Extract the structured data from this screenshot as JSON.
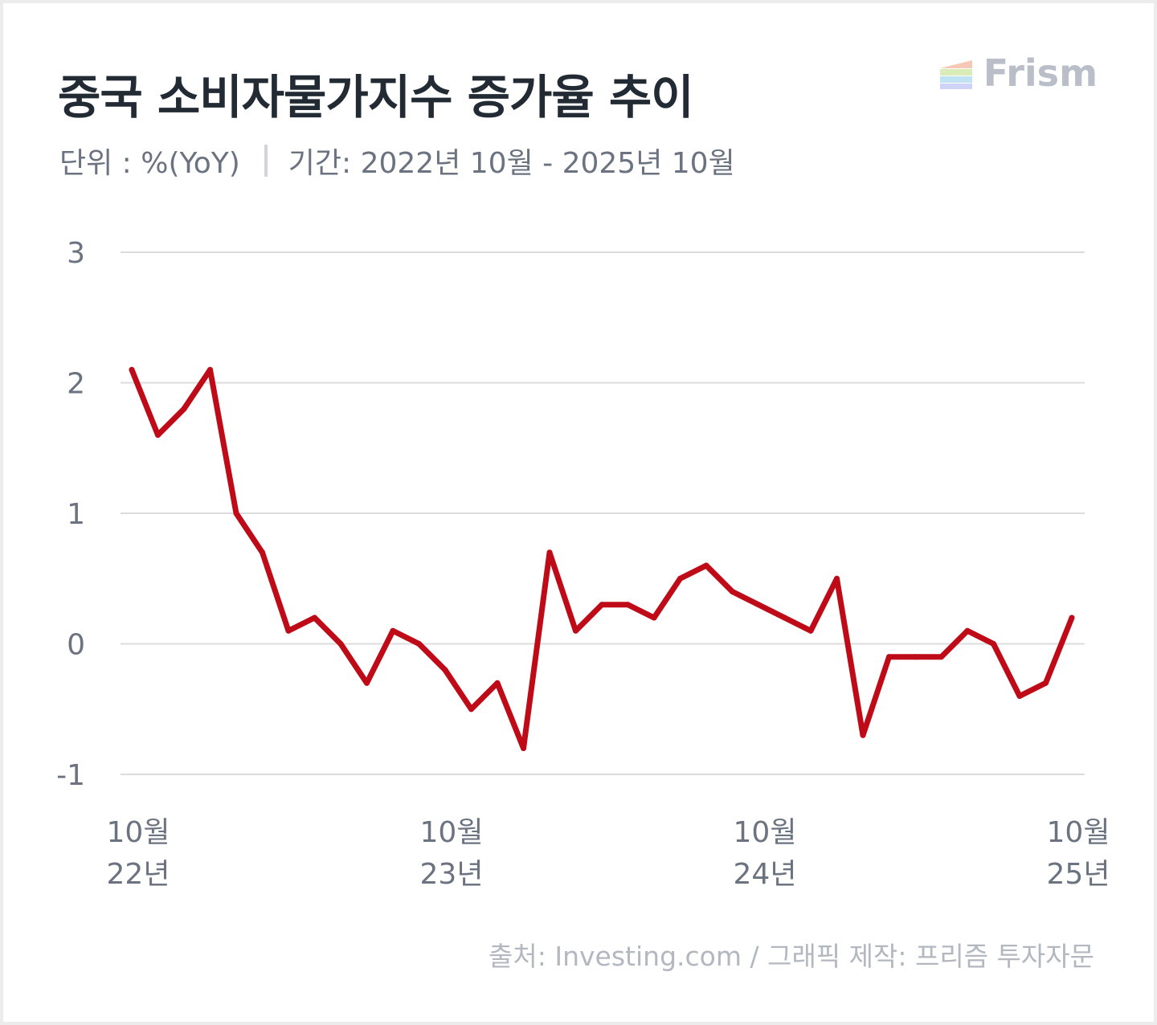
{
  "header": {
    "title": "중국 소비자물가지수 증가율 추이",
    "unit": "단위 : %(YoY)",
    "period": "기간: 2022년 10월 - 2025년 10월"
  },
  "logo": {
    "text": "Frism",
    "icon": "stacked-bars-logo-icon"
  },
  "footer": {
    "source": "출처: Investing.com / 그래픽 제작: 프리즘 투자자문"
  },
  "colors": {
    "line": "#bf0a17",
    "grid": "#dcdcdf",
    "tick": "#6b7280"
  },
  "chart_data": {
    "type": "line",
    "ylim": [
      -1,
      3
    ],
    "yticks": [
      "3",
      "2",
      "1",
      "0",
      "-1"
    ],
    "ytick_values": [
      3,
      2,
      1,
      0,
      -1
    ],
    "x_tick_labels": [
      {
        "month": "10월",
        "year": "22년",
        "index": 0
      },
      {
        "month": "10월",
        "year": "23년",
        "index": 12
      },
      {
        "month": "10월",
        "year": "24년",
        "index": 24
      },
      {
        "month": "10월",
        "year": "25년",
        "index": 36
      }
    ],
    "x": [
      "2022-10",
      "2022-11",
      "2022-12",
      "2023-01",
      "2023-02",
      "2023-03",
      "2023-04",
      "2023-05",
      "2023-06",
      "2023-07",
      "2023-08",
      "2023-09",
      "2023-10",
      "2023-11",
      "2023-12",
      "2024-01",
      "2024-02",
      "2024-03",
      "2024-04",
      "2024-05",
      "2024-06",
      "2024-07",
      "2024-08",
      "2024-09",
      "2024-10",
      "2024-11",
      "2024-12",
      "2025-01",
      "2025-02",
      "2025-03",
      "2025-04",
      "2025-05",
      "2025-06",
      "2025-07",
      "2025-08",
      "2025-09",
      "2025-10"
    ],
    "values": [
      2.1,
      1.6,
      1.8,
      2.1,
      1.0,
      0.7,
      0.1,
      0.2,
      0.0,
      -0.3,
      0.1,
      0.0,
      -0.2,
      -0.5,
      -0.3,
      -0.8,
      0.7,
      0.1,
      0.3,
      0.3,
      0.2,
      0.5,
      0.6,
      0.4,
      0.3,
      0.2,
      0.1,
      0.5,
      -0.7,
      -0.1,
      -0.1,
      -0.1,
      0.1,
      0.0,
      -0.4,
      -0.3,
      0.2
    ],
    "grid": true
  }
}
